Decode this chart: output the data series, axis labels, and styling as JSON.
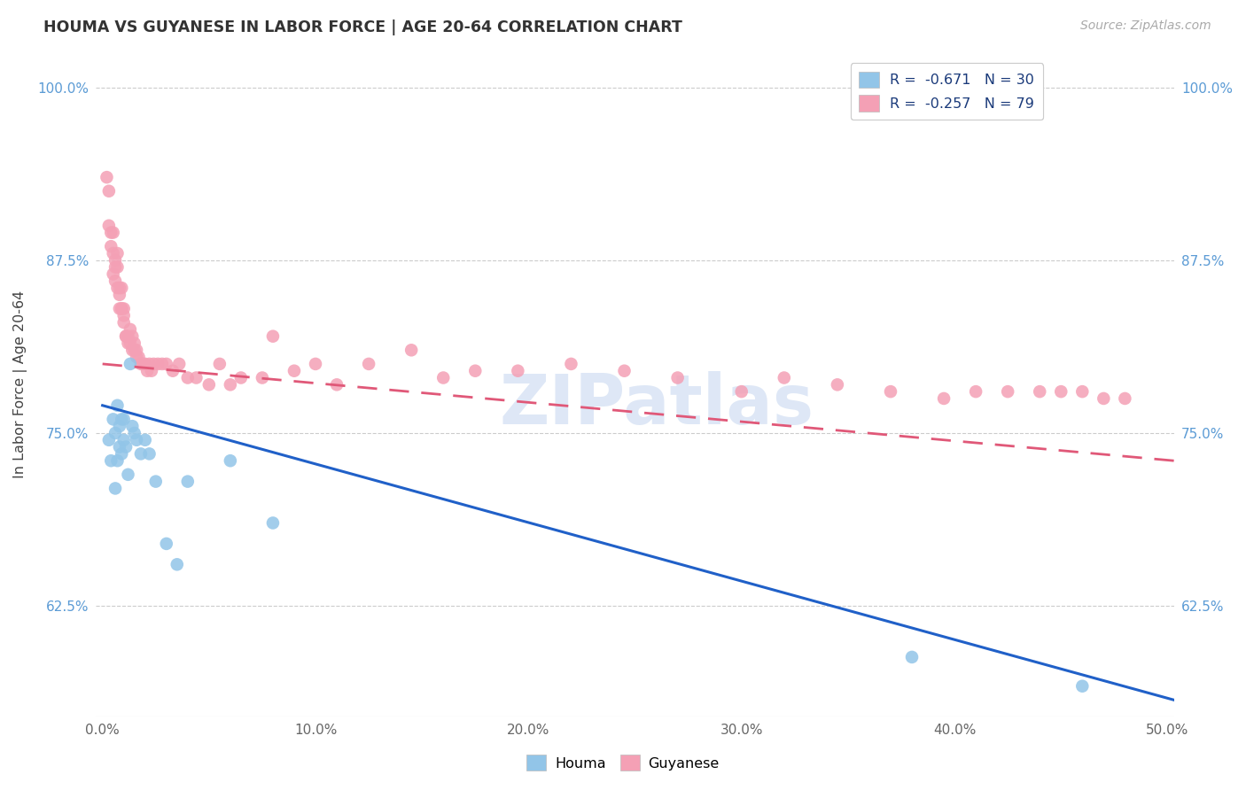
{
  "title": "HOUMA VS GUYANESE IN LABOR FORCE | AGE 20-64 CORRELATION CHART",
  "source": "Source: ZipAtlas.com",
  "ylabel": "In Labor Force | Age 20-64",
  "xlim": [
    -0.003,
    0.503
  ],
  "ylim": [
    0.545,
    1.025
  ],
  "yticks": [
    0.625,
    0.75,
    0.875,
    1.0
  ],
  "ytick_labels": [
    "62.5%",
    "75.0%",
    "87.5%",
    "100.0%"
  ],
  "xticks": [
    0.0,
    0.1,
    0.2,
    0.3,
    0.4,
    0.5
  ],
  "xtick_labels": [
    "0.0%",
    "10.0%",
    "20.0%",
    "30.0%",
    "40.0%",
    "50.0%"
  ],
  "houma_R": -0.671,
  "houma_N": 30,
  "guyanese_R": -0.257,
  "guyanese_N": 79,
  "houma_color": "#92C5E8",
  "guyanese_color": "#F4A0B5",
  "houma_line_color": "#2060C8",
  "guyanese_line_color": "#E05878",
  "watermark": "ZIPatlas",
  "watermark_color": "#C8D8F0",
  "houma_x": [
    0.003,
    0.004,
    0.005,
    0.006,
    0.006,
    0.007,
    0.007,
    0.008,
    0.008,
    0.009,
    0.009,
    0.01,
    0.01,
    0.011,
    0.012,
    0.013,
    0.014,
    0.015,
    0.016,
    0.018,
    0.02,
    0.022,
    0.025,
    0.03,
    0.035,
    0.04,
    0.06,
    0.08,
    0.38,
    0.46
  ],
  "houma_y": [
    0.745,
    0.73,
    0.76,
    0.71,
    0.75,
    0.73,
    0.77,
    0.74,
    0.755,
    0.735,
    0.76,
    0.745,
    0.76,
    0.74,
    0.72,
    0.8,
    0.755,
    0.75,
    0.745,
    0.735,
    0.745,
    0.735,
    0.715,
    0.67,
    0.655,
    0.715,
    0.73,
    0.685,
    0.588,
    0.567
  ],
  "guyanese_x": [
    0.002,
    0.003,
    0.003,
    0.004,
    0.004,
    0.005,
    0.005,
    0.005,
    0.006,
    0.006,
    0.006,
    0.007,
    0.007,
    0.007,
    0.008,
    0.008,
    0.008,
    0.009,
    0.009,
    0.009,
    0.01,
    0.01,
    0.01,
    0.011,
    0.011,
    0.012,
    0.012,
    0.013,
    0.013,
    0.014,
    0.014,
    0.015,
    0.015,
    0.016,
    0.016,
    0.017,
    0.018,
    0.019,
    0.02,
    0.021,
    0.022,
    0.023,
    0.024,
    0.026,
    0.028,
    0.03,
    0.033,
    0.036,
    0.04,
    0.044,
    0.05,
    0.055,
    0.06,
    0.065,
    0.075,
    0.08,
    0.09,
    0.1,
    0.11,
    0.125,
    0.145,
    0.16,
    0.175,
    0.195,
    0.22,
    0.245,
    0.27,
    0.3,
    0.32,
    0.345,
    0.37,
    0.395,
    0.41,
    0.425,
    0.44,
    0.45,
    0.46,
    0.47,
    0.48
  ],
  "guyanese_y": [
    0.935,
    0.9,
    0.925,
    0.895,
    0.885,
    0.88,
    0.865,
    0.895,
    0.875,
    0.87,
    0.86,
    0.88,
    0.87,
    0.855,
    0.85,
    0.84,
    0.855,
    0.84,
    0.84,
    0.855,
    0.84,
    0.835,
    0.83,
    0.82,
    0.82,
    0.815,
    0.82,
    0.815,
    0.825,
    0.82,
    0.81,
    0.81,
    0.815,
    0.81,
    0.805,
    0.805,
    0.8,
    0.8,
    0.8,
    0.795,
    0.8,
    0.795,
    0.8,
    0.8,
    0.8,
    0.8,
    0.795,
    0.8,
    0.79,
    0.79,
    0.785,
    0.8,
    0.785,
    0.79,
    0.79,
    0.82,
    0.795,
    0.8,
    0.785,
    0.8,
    0.81,
    0.79,
    0.795,
    0.795,
    0.8,
    0.795,
    0.79,
    0.78,
    0.79,
    0.785,
    0.78,
    0.775,
    0.78,
    0.78,
    0.78,
    0.78,
    0.78,
    0.775,
    0.775
  ],
  "houma_line_x0": 0.0,
  "houma_line_y0": 0.77,
  "houma_line_x1": 0.503,
  "houma_line_y1": 0.557,
  "guyanese_line_x0": 0.0,
  "guyanese_line_y0": 0.8,
  "guyanese_line_x1": 0.503,
  "guyanese_line_y1": 0.73
}
